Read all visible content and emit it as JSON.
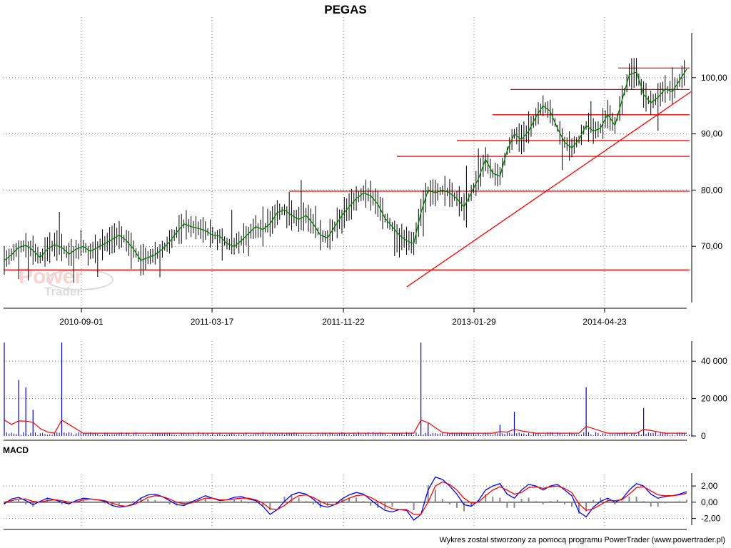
{
  "chart_data": [
    {
      "type": "candlestick",
      "title": "PEGAS",
      "x_tick_labels": [
        "2010-09-01",
        "2011-03-17",
        "2011-11-22",
        "2013-01-29",
        "2014-04-23"
      ],
      "y_tick_labels": [
        "70,00",
        "80,00",
        "90,00",
        "100,00"
      ],
      "ylim": [
        60,
        110
      ],
      "grid": true,
      "moving_average": {
        "color": "#008000",
        "values": [
          67.5,
          68.5,
          69.8,
          70.2,
          69.3,
          68.0,
          69.5,
          70.3,
          69.8,
          68.6,
          69.5,
          70.0,
          69.1,
          69.8,
          70.5,
          71.2,
          72.0,
          71.0,
          69.5,
          67.5,
          68.0,
          68.5,
          69.5,
          70.8,
          72.5,
          74.0,
          73.5,
          73.2,
          72.8,
          72.0,
          71.8,
          70.5,
          70.0,
          71.0,
          72.3,
          73.5,
          73.0,
          74.0,
          76.0,
          76.5,
          75.5,
          74.8,
          75.5,
          74.0,
          72.0,
          71.5,
          73.5,
          75.5,
          77.0,
          78.5,
          79.5,
          79.0,
          77.5,
          75.0,
          73.5,
          72.0,
          71.0,
          70.5,
          76.0,
          80.0,
          79.5,
          80.0,
          79.5,
          78.5,
          77.0,
          79.5,
          82.0,
          85.5,
          83.0,
          82.5,
          87.0,
          90.0,
          89.0,
          90.5,
          93.0,
          95.0,
          94.0,
          91.0,
          88.5,
          87.5,
          89.0,
          91.5,
          90.5,
          91.0,
          93.5,
          91.5,
          96.0,
          100.5,
          101.0,
          97.0,
          95.5,
          96.5,
          98.0,
          97.5,
          99.5,
          101.5
        ]
      },
      "support_lines": [
        {
          "value": 65.8,
          "color": "#ff0000"
        },
        {
          "value": 79.8,
          "color": "#ff0000"
        },
        {
          "value": 86.0,
          "color": "#ff0000"
        },
        {
          "value": 88.8,
          "color": "#ff0000"
        },
        {
          "value": 93.4,
          "color": "#ff0000"
        },
        {
          "value": 97.9,
          "color": "#ff0000"
        },
        {
          "value": 101.7,
          "color": "#ff0000"
        }
      ],
      "trendline": {
        "from": 62.8,
        "to": 97.5,
        "color": "#ff0000"
      }
    },
    {
      "type": "bar",
      "y_tick_labels": [
        "0",
        "20 000",
        "40 000"
      ],
      "ylim": [
        0,
        50000
      ],
      "bar_color": "#0000cc",
      "volume_spikes": [
        {
          "index": 0,
          "value": 50000
        },
        {
          "index": 2,
          "value": 30000
        },
        {
          "index": 3,
          "value": 26000
        },
        {
          "index": 4,
          "value": 14000
        },
        {
          "index": 8,
          "value": 50000
        },
        {
          "index": 58,
          "value": 50000
        },
        {
          "index": 59,
          "value": 7000
        },
        {
          "index": 69,
          "value": 6000
        },
        {
          "index": 71,
          "value": 13000
        },
        {
          "index": 81,
          "value": 26000
        },
        {
          "index": 89,
          "value": 15000
        }
      ],
      "moving_average_color": "#ff0000"
    },
    {
      "type": "line",
      "label": "MACD",
      "y_tick_labels": [
        "-2,00",
        "0,00",
        "2,00"
      ],
      "ylim": [
        -3,
        3.5
      ],
      "macd": [
        -0.2,
        0.4,
        0.6,
        0.2,
        -0.3,
        0.1,
        0.5,
        0.3,
        0.0,
        -0.2,
        0.2,
        0.5,
        0.4,
        0.3,
        0.1,
        -0.4,
        -0.6,
        -0.5,
        -0.2,
        0.5,
        0.9,
        1.0,
        0.7,
        0.2,
        -0.3,
        -0.4,
        0.0,
        0.4,
        0.8,
        0.5,
        0.2,
        0.3,
        0.6,
        0.7,
        0.4,
        0.2,
        -0.5,
        -1.5,
        -0.9,
        0.1,
        0.9,
        1.2,
        1.0,
        0.4,
        -0.4,
        -0.6,
        -0.3,
        0.4,
        0.9,
        1.2,
        1.0,
        0.3,
        -0.4,
        -1.0,
        -1.2,
        -0.9,
        -1.0,
        -2.2,
        -1.5,
        1.5,
        3.1,
        2.8,
        2.0,
        1.0,
        -0.3,
        -0.5,
        0.2,
        1.5,
        2.0,
        2.3,
        1.0,
        0.5,
        1.5,
        2.2,
        2.0,
        1.5,
        2.0,
        2.2,
        1.5,
        0.8,
        -1.2,
        -1.8,
        -0.6,
        0.1,
        0.5,
        0.0,
        0.4,
        1.5,
        2.3,
        2.0,
        1.0,
        0.5,
        0.7,
        0.8,
        1.0,
        1.3
      ],
      "signal": [
        0.0,
        0.2,
        0.4,
        0.4,
        0.1,
        0.0,
        0.2,
        0.3,
        0.2,
        0.0,
        0.0,
        0.3,
        0.4,
        0.3,
        0.2,
        -0.1,
        -0.4,
        -0.5,
        -0.3,
        0.1,
        0.6,
        0.8,
        0.7,
        0.4,
        0.0,
        -0.2,
        -0.1,
        0.2,
        0.5,
        0.5,
        0.3,
        0.3,
        0.4,
        0.5,
        0.5,
        0.3,
        -0.1,
        -0.8,
        -0.9,
        -0.4,
        0.3,
        0.8,
        0.9,
        0.6,
        0.1,
        -0.3,
        -0.3,
        0.1,
        0.5,
        0.8,
        0.9,
        0.6,
        0.1,
        -0.4,
        -0.8,
        -0.9,
        -0.9,
        -1.5,
        -1.5,
        0.0,
        2.0,
        2.5,
        2.2,
        1.5,
        0.5,
        -0.1,
        0.0,
        0.8,
        1.5,
        1.9,
        1.5,
        1.0,
        1.2,
        1.8,
        1.9,
        1.7,
        1.9,
        2.0,
        1.7,
        1.2,
        -0.2,
        -1.0,
        -0.8,
        -0.3,
        0.2,
        0.2,
        0.3,
        1.0,
        1.8,
        1.9,
        1.4,
        0.9,
        0.8,
        0.8,
        0.9,
        1.1
      ],
      "macd_color": "#0000ff",
      "signal_color": "#ff0000",
      "histogram_color": "#888888"
    }
  ],
  "watermark": {
    "word1": "Power",
    "word2": "Trader"
  },
  "footer": "Wykres został stworzony za pomocą programu PowerTrader (www.powertrader.pl)"
}
